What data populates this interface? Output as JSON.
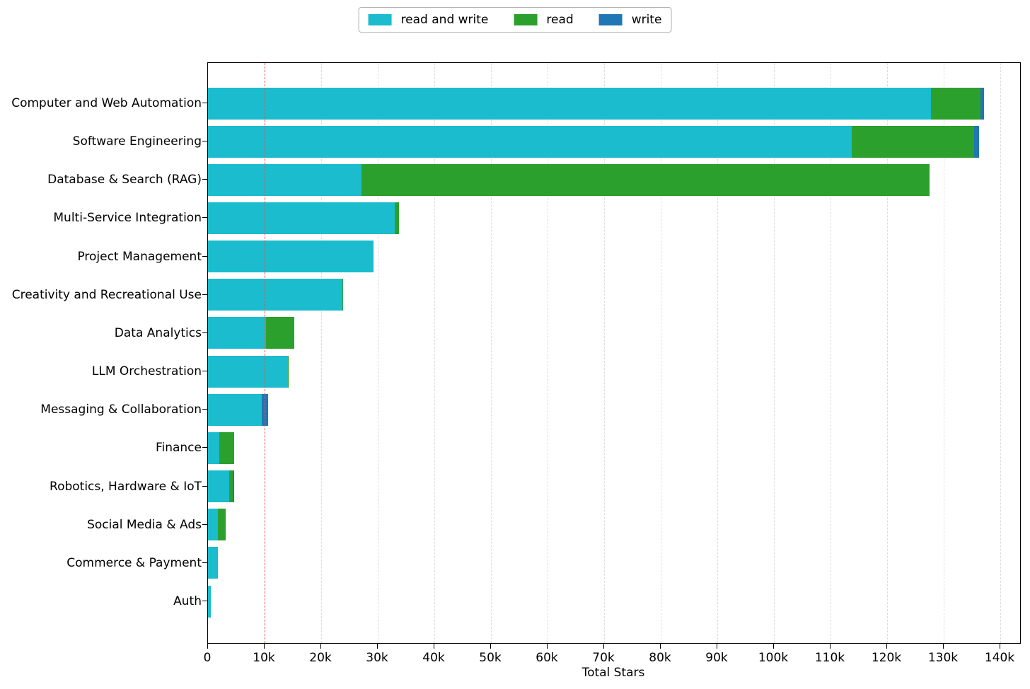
{
  "chart_data": {
    "type": "bar",
    "orientation": "horizontal",
    "stacked": true,
    "title": "",
    "xlabel": "Total Stars",
    "ylabel": "",
    "xlim": [
      0,
      143500
    ],
    "grid": "vertical-dashed",
    "legend_position": "top-center",
    "reference_line": {
      "value": 10000,
      "style": "dashed",
      "color": "#e8534e"
    },
    "x_ticks": [
      {
        "value": 0,
        "label": "0"
      },
      {
        "value": 10000,
        "label": "10k"
      },
      {
        "value": 20000,
        "label": "20k"
      },
      {
        "value": 30000,
        "label": "30k"
      },
      {
        "value": 40000,
        "label": "40k"
      },
      {
        "value": 50000,
        "label": "50k"
      },
      {
        "value": 60000,
        "label": "60k"
      },
      {
        "value": 70000,
        "label": "70k"
      },
      {
        "value": 80000,
        "label": "80k"
      },
      {
        "value": 90000,
        "label": "90k"
      },
      {
        "value": 100000,
        "label": "100k"
      },
      {
        "value": 110000,
        "label": "110k"
      },
      {
        "value": 120000,
        "label": "120k"
      },
      {
        "value": 130000,
        "label": "130k"
      },
      {
        "value": 140000,
        "label": "140k"
      }
    ],
    "categories": [
      "Computer and Web Automation",
      "Software Engineering",
      "Database & Search (RAG)",
      "Multi-Service Integration",
      "Project Management",
      "Creativity and Recreational Use",
      "Data Analytics",
      "LLM Orchestration",
      "Messaging & Collaboration",
      "Finance",
      "Robotics, Hardware & IoT",
      "Social Media & Ads",
      "Commerce & Payment",
      "Auth"
    ],
    "series": [
      {
        "name": "read and write",
        "color": "#1abccd",
        "values": [
          127800,
          113800,
          27100,
          33000,
          29300,
          23700,
          10300,
          14100,
          9500,
          2000,
          3750,
          1750,
          1700,
          500
        ]
      },
      {
        "name": "read",
        "color": "#2ca02c",
        "values": [
          8700,
          21600,
          100400,
          750,
          0,
          200,
          5000,
          150,
          0,
          2600,
          600,
          1400,
          0,
          0
        ]
      },
      {
        "name": "write",
        "color": "#1f77b4",
        "values": [
          600,
          900,
          0,
          0,
          0,
          0,
          0,
          0,
          1100,
          0,
          250,
          0,
          0,
          0
        ]
      }
    ]
  }
}
